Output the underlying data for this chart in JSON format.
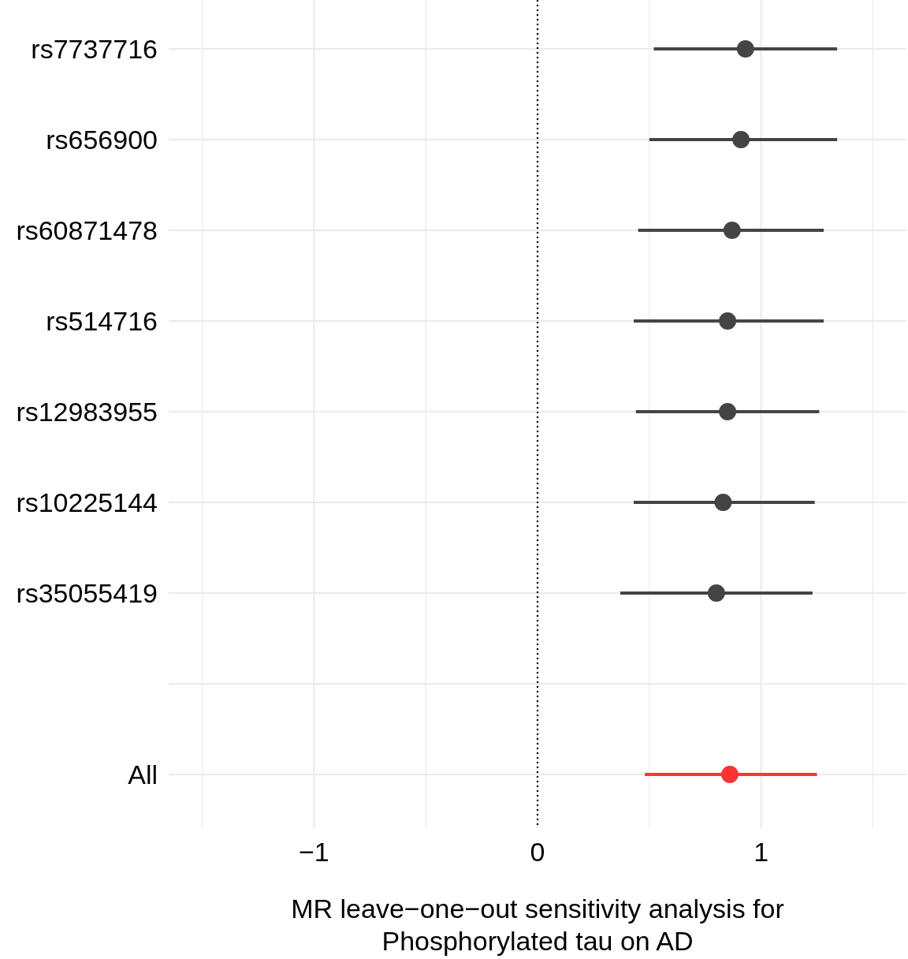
{
  "chart_data": {
    "type": "scatter",
    "orientation": "horizontal",
    "xlabel": "MR leave−one−out sensitivity analysis for\nPhosphorylated tau on AD",
    "categories": [
      "rs7737716",
      "rs656900",
      "rs60871478",
      "rs514716",
      "rs12983955",
      "rs10225144",
      "rs35055419",
      null,
      "All"
    ],
    "values": [
      0.93,
      0.91,
      0.87,
      0.85,
      0.85,
      0.83,
      0.8,
      null,
      0.86
    ],
    "errors": [
      [
        0.52,
        1.34
      ],
      [
        0.5,
        1.34
      ],
      [
        0.45,
        1.28
      ],
      [
        0.43,
        1.28
      ],
      [
        0.44,
        1.26
      ],
      [
        0.43,
        1.24
      ],
      [
        0.37,
        1.23
      ],
      null,
      [
        0.48,
        1.25
      ]
    ],
    "colors": [
      "#444444",
      "#444444",
      "#444444",
      "#444444",
      "#444444",
      "#444444",
      "#444444",
      "#444444",
      "#ff3333"
    ],
    "xlim": [
      -1.65,
      1.65
    ],
    "xticks": [
      {
        "value": -1.5,
        "label": null
      },
      {
        "value": -1,
        "label": "−1"
      },
      {
        "value": -0.5,
        "label": null
      },
      0,
      {
        "value": 0.5,
        "label": null
      },
      1,
      {
        "value": 1.5,
        "label": null
      }
    ],
    "grid": true,
    "marker": "circle",
    "ref_lines": [
      {
        "axis": "x",
        "value": 0,
        "line_style": "dotted",
        "color": "#000000"
      }
    ]
  }
}
